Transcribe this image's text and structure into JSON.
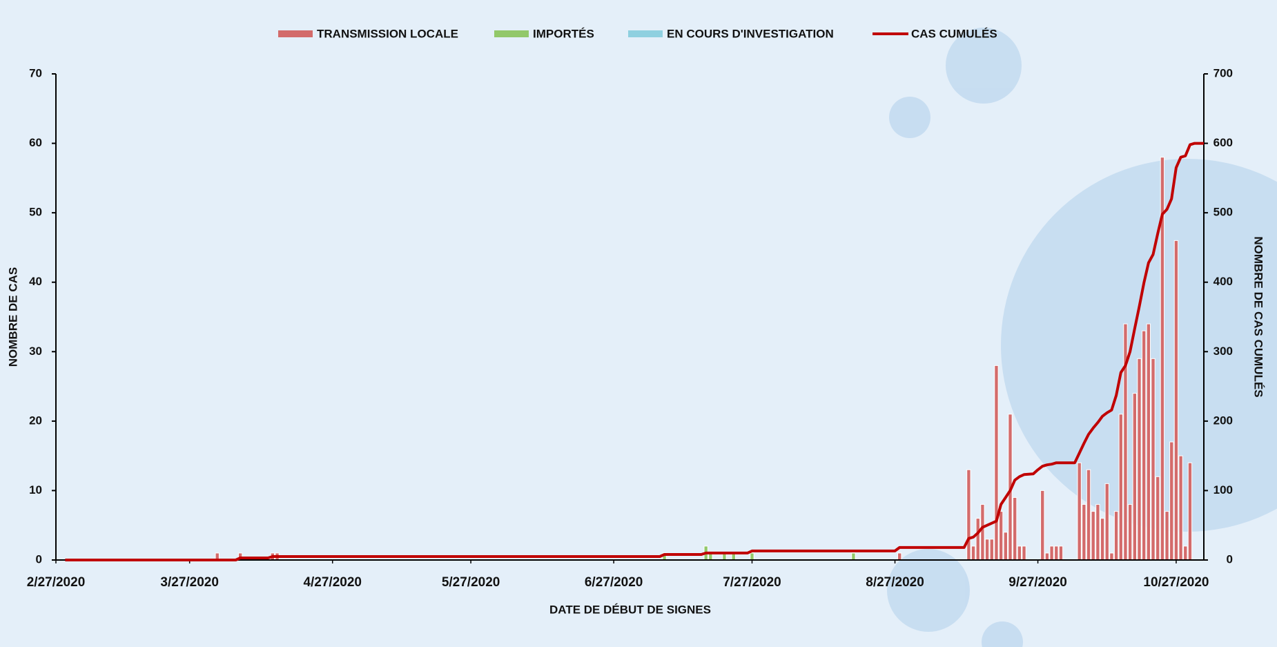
{
  "chart_data": {
    "type": "combo",
    "x_title": "DATE DE DÉBUT DE SIGNES",
    "y_title": "NOMBRE DE CAS",
    "y2_title": "NOMBRE DE CAS CUMULÉS",
    "legend": "top",
    "stacked": true,
    "xlim": [
      "2/27/2020",
      "11/2/2020"
    ],
    "xticks": [
      "2/27/2020",
      "3/27/2020",
      "4/27/2020",
      "5/27/2020",
      "6/27/2020",
      "7/27/2020",
      "8/27/2020",
      "9/27/2020",
      "10/27/2020"
    ],
    "ylim": [
      0,
      70
    ],
    "yticks": [
      0,
      10,
      20,
      30,
      40,
      50,
      60,
      70
    ],
    "y2lim": [
      0,
      700
    ],
    "y2ticks": [
      0,
      100,
      200,
      300,
      400,
      500,
      600,
      700
    ],
    "x": [
      "4/2/2020",
      "4/7/2020",
      "4/14/2020",
      "4/15/2020",
      "7/8/2020",
      "7/17/2020",
      "7/18/2020",
      "7/21/2020",
      "7/23/2020",
      "7/27/2020",
      "8/18/2020",
      "8/28/2020",
      "9/12/2020",
      "9/13/2020",
      "9/14/2020",
      "9/15/2020",
      "9/16/2020",
      "9/17/2020",
      "9/18/2020",
      "9/19/2020",
      "9/20/2020",
      "9/21/2020",
      "9/22/2020",
      "9/23/2020",
      "9/24/2020",
      "9/28/2020",
      "9/29/2020",
      "9/30/2020",
      "10/1/2020",
      "10/2/2020",
      "10/6/2020",
      "10/7/2020",
      "10/8/2020",
      "10/9/2020",
      "10/10/2020",
      "10/11/2020",
      "10/12/2020",
      "10/13/2020",
      "10/14/2020",
      "10/15/2020",
      "10/16/2020",
      "10/17/2020",
      "10/18/2020",
      "10/19/2020",
      "10/20/2020",
      "10/21/2020",
      "10/22/2020",
      "10/23/2020",
      "10/24/2020",
      "10/25/2020",
      "10/26/2020",
      "10/27/2020",
      "10/28/2020",
      "10/29/2020",
      "10/30/2020"
    ],
    "series": [
      {
        "name": "TRANSMISSION LOCALE",
        "type": "bar",
        "color": "#d36b6b",
        "values": [
          1,
          1,
          1,
          1,
          0,
          0,
          0,
          0,
          0,
          0,
          0,
          1,
          13,
          2,
          6,
          8,
          3,
          3,
          28,
          7,
          4,
          21,
          9,
          2,
          2,
          10,
          1,
          2,
          2,
          2,
          14,
          8,
          13,
          7,
          8,
          6,
          11,
          1,
          7,
          21,
          34,
          8,
          24,
          29,
          33,
          34,
          29,
          12,
          58,
          7,
          17,
          46,
          15,
          2,
          14
        ]
      },
      {
        "name": "IMPORTÉS",
        "type": "bar",
        "color": "#92c86a",
        "values": [
          0,
          0,
          0,
          0,
          1,
          2,
          1,
          1,
          1,
          1,
          1,
          0,
          0,
          0,
          0,
          0,
          0,
          0,
          0,
          0,
          0,
          0,
          0,
          0,
          0,
          0,
          0,
          0,
          0,
          0,
          0,
          0,
          0,
          0,
          0,
          0,
          0,
          0,
          0,
          0,
          0,
          0,
          0,
          0,
          0,
          0,
          0,
          0,
          0,
          0,
          0,
          0,
          0,
          0,
          0
        ]
      },
      {
        "name": "EN COURS D'INVESTIGATION",
        "type": "bar",
        "color": "#8fd0e0",
        "values": [
          0,
          0,
          0,
          0,
          0,
          0,
          0,
          0,
          0,
          0,
          0,
          0,
          0,
          0,
          0,
          0,
          0,
          0,
          0,
          0,
          0,
          0,
          0,
          0,
          0,
          0,
          0,
          0,
          0,
          0,
          0,
          0,
          0,
          0,
          0,
          0,
          0,
          0,
          0,
          0,
          0,
          0,
          0,
          0,
          0,
          0,
          0,
          0,
          0,
          0,
          0,
          0,
          0,
          0,
          0
        ]
      },
      {
        "name": "CAS CUMULÉS",
        "type": "line",
        "axis": "y2",
        "color": "#c00000",
        "x": [
          "2/29/2020",
          "4/6/2020",
          "4/7/2020",
          "4/13/2020",
          "4/14/2020",
          "7/7/2020",
          "7/8/2020",
          "7/16/2020",
          "7/17/2020",
          "7/26/2020",
          "7/27/2020",
          "8/27/2020",
          "8/28/2020",
          "9/11/2020",
          "9/12/2020",
          "9/13/2020",
          "9/14/2020",
          "9/15/2020",
          "9/16/2020",
          "9/17/2020",
          "9/18/2020",
          "9/19/2020",
          "9/20/2020",
          "9/21/2020",
          "9/22/2020",
          "9/23/2020",
          "9/24/2020",
          "9/26/2020",
          "9/27/2020",
          "9/28/2020",
          "9/29/2020",
          "9/30/2020",
          "10/1/2020",
          "10/5/2020",
          "10/6/2020",
          "10/7/2020",
          "10/8/2020",
          "10/9/2020",
          "10/10/2020",
          "10/11/2020",
          "10/12/2020",
          "10/13/2020",
          "10/14/2020",
          "10/15/2020",
          "10/16/2020",
          "10/17/2020",
          "10/18/2020",
          "10/19/2020",
          "10/20/2020",
          "10/21/2020",
          "10/22/2020",
          "10/23/2020",
          "10/24/2020",
          "10/25/2020",
          "10/26/2020",
          "10/27/2020",
          "10/28/2020",
          "10/29/2020",
          "10/30/2020",
          "10/31/2020",
          "11/2/2020"
        ],
        "values": [
          0,
          0,
          3,
          3,
          5,
          5,
          8,
          8,
          10,
          10,
          13,
          13,
          18,
          18,
          31,
          33,
          39,
          47,
          50,
          53,
          56,
          80,
          90,
          100,
          115,
          120,
          123,
          124,
          130,
          135,
          137,
          138,
          140,
          140,
          154,
          168,
          181,
          190,
          198,
          207,
          212,
          216,
          237,
          270,
          280,
          300,
          333,
          365,
          399,
          428,
          440,
          470,
          498,
          505,
          520,
          565,
          580,
          582,
          598,
          600,
          600
        ]
      }
    ]
  }
}
